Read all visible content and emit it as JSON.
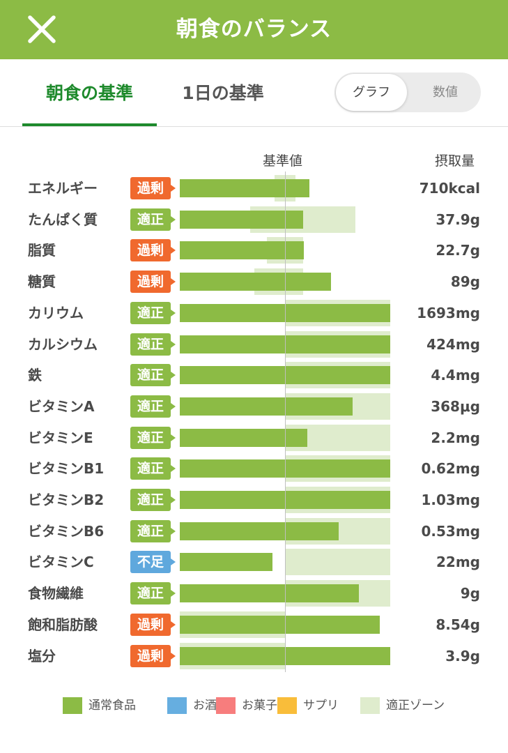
{
  "header": {
    "title": "朝食のバランス"
  },
  "tabs": [
    {
      "label": "朝食の基準",
      "active": true
    },
    {
      "label": "1日の基準",
      "active": false
    }
  ],
  "view_toggle": {
    "options": [
      "グラフ",
      "数値"
    ],
    "selected": "グラフ"
  },
  "columns": {
    "baseline": "基準値",
    "intake": "摂取量"
  },
  "status_colors": {
    "過剰": "#f0692e",
    "適正": "#8cbb45",
    "不足": "#5fa8dd"
  },
  "chart_data": {
    "type": "bar",
    "baseline_value": 1.0,
    "rows": [
      {
        "name": "エネルギー",
        "status": "過剰",
        "value": "710kcal",
        "bar_ratio": 1.23,
        "zone": [
          0.9,
          1.1
        ]
      },
      {
        "name": "たんぱく質",
        "status": "適正",
        "value": "37.9g",
        "bar_ratio": 1.17,
        "zone": [
          0.67,
          1.67
        ]
      },
      {
        "name": "脂質",
        "status": "過剰",
        "value": "22.7g",
        "bar_ratio": 1.18,
        "zone": [
          0.83,
          1.17
        ]
      },
      {
        "name": "糖質",
        "status": "過剰",
        "value": "89g",
        "bar_ratio": 1.44,
        "zone": [
          0.71,
          1.17
        ]
      },
      {
        "name": "カリウム",
        "status": "適正",
        "value": "1693mg",
        "bar_ratio": 2.0,
        "zone": [
          1.0,
          2.0
        ]
      },
      {
        "name": "カルシウム",
        "status": "適正",
        "value": "424mg",
        "bar_ratio": 2.0,
        "zone": [
          1.0,
          2.0
        ]
      },
      {
        "name": "鉄",
        "status": "適正",
        "value": "4.4mg",
        "bar_ratio": 2.0,
        "zone": [
          1.0,
          2.0
        ]
      },
      {
        "name": "ビタミンA",
        "status": "適正",
        "value": "368μg",
        "bar_ratio": 1.64,
        "zone": [
          1.0,
          2.0
        ]
      },
      {
        "name": "ビタミンE",
        "status": "適正",
        "value": "2.2mg",
        "bar_ratio": 1.21,
        "zone": [
          1.0,
          2.0
        ]
      },
      {
        "name": "ビタミンB1",
        "status": "適正",
        "value": "0.62mg",
        "bar_ratio": 2.0,
        "zone": [
          1.0,
          2.0
        ]
      },
      {
        "name": "ビタミンB2",
        "status": "適正",
        "value": "1.03mg",
        "bar_ratio": 2.0,
        "zone": [
          1.0,
          2.0
        ]
      },
      {
        "name": "ビタミンB6",
        "status": "適正",
        "value": "0.53mg",
        "bar_ratio": 1.51,
        "zone": [
          1.0,
          2.0
        ]
      },
      {
        "name": "ビタミンC",
        "status": "不足",
        "value": "22mg",
        "bar_ratio": 0.88,
        "zone": [
          1.0,
          2.0
        ]
      },
      {
        "name": "食物繊維",
        "status": "適正",
        "value": "9g",
        "bar_ratio": 1.7,
        "zone": [
          1.0,
          2.0
        ]
      },
      {
        "name": "飽和脂肪酸",
        "status": "過剰",
        "value": "8.54g",
        "bar_ratio": 1.9,
        "zone": [
          0.0,
          1.0
        ]
      },
      {
        "name": "塩分",
        "status": "過剰",
        "value": "3.9g",
        "bar_ratio": 2.0,
        "zone": [
          0.0,
          1.0
        ]
      }
    ]
  },
  "legend": [
    {
      "label": "通常食品",
      "color": "#8cbb45"
    },
    {
      "label": "お酒",
      "color": "#66aee0"
    },
    {
      "label": "お菓子",
      "color": "#f77d7d"
    },
    {
      "label": "サプリ",
      "color": "#f9bd3a"
    },
    {
      "label": "適正ゾーン",
      "color": "#dfeccd"
    }
  ]
}
